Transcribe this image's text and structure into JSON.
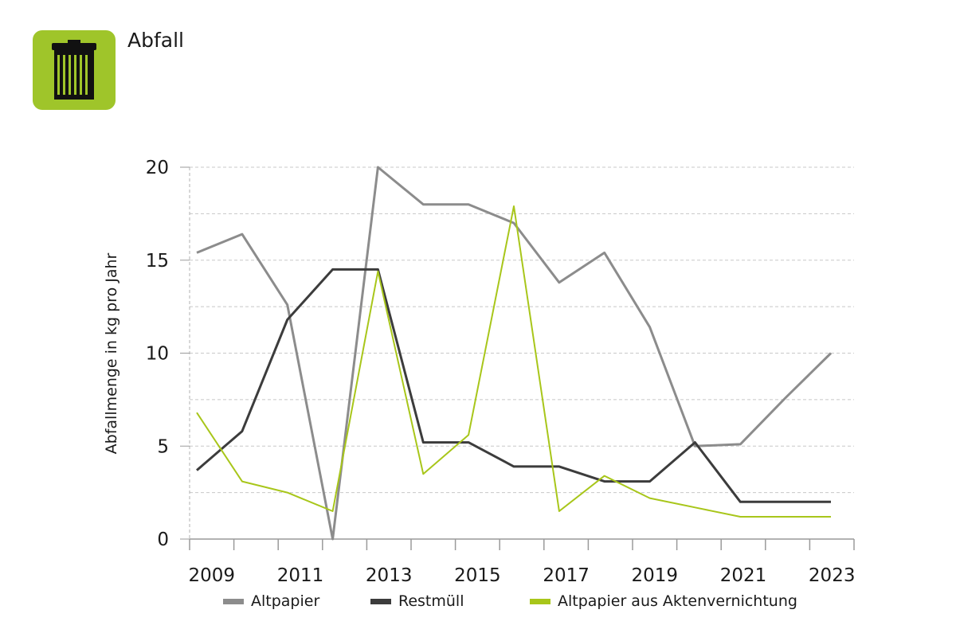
{
  "header": {
    "title": "Abfall",
    "icon": "trash-can-icon",
    "accent_color": "#9fc52a"
  },
  "chart_data": {
    "type": "line",
    "title": "",
    "xlabel": "",
    "ylabel": "Abfallmenge in kg pro Jahr",
    "x": [
      2009,
      2010,
      2011,
      2012,
      2013,
      2014,
      2015,
      2016,
      2017,
      2018,
      2019,
      2020,
      2021,
      2022,
      2023
    ],
    "x_tick_labels": [
      "2009",
      "2011",
      "2013",
      "2015",
      "2017",
      "2019",
      "2021",
      "2023"
    ],
    "y_tick_labels": [
      "0",
      "5",
      "10",
      "15",
      "20"
    ],
    "ylim": [
      0,
      20
    ],
    "grid": true,
    "legend_position": "bottom",
    "series": [
      {
        "name": "Altpapier",
        "color": "#8c8c8c",
        "values": [
          15.4,
          16.4,
          12.6,
          0.0,
          20.0,
          18.0,
          18.0,
          17.0,
          13.8,
          15.4,
          11.4,
          5.0,
          5.1,
          7.6,
          10.0
        ]
      },
      {
        "name": "Restmüll",
        "color": "#3c3c3c",
        "values": [
          3.7,
          5.8,
          11.8,
          14.5,
          14.5,
          5.2,
          5.2,
          3.9,
          3.9,
          3.1,
          3.1,
          5.2,
          2.0,
          2.0,
          2.0
        ]
      },
      {
        "name": "Altpapier aus Aktenvernichtung",
        "color": "#a8c61a",
        "values": [
          6.8,
          3.1,
          2.5,
          1.5,
          14.4,
          3.5,
          5.6,
          17.9,
          1.5,
          3.4,
          2.2,
          1.7,
          1.2,
          1.2,
          1.2
        ]
      }
    ]
  }
}
